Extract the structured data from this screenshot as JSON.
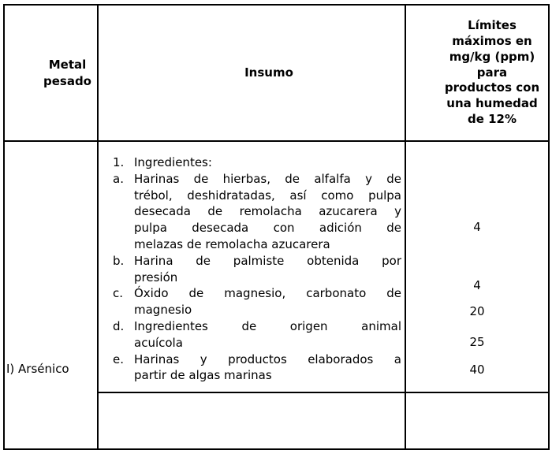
{
  "table": {
    "headers": {
      "metal": "Metal pesado",
      "insumo": "Insumo",
      "limits": "Límites\nmáximos en\nmg/kg (ppm)\npara\nproductos con\nuna humedad\nde 12%"
    },
    "row": {
      "metal": "I) Arsénico",
      "items": [
        {
          "marker": "1.",
          "lines": [
            "Ingredientes:"
          ]
        },
        {
          "marker": "a.",
          "lines": [
            "Harinas de hierbas, de alfalfa y de",
            "trébol, deshidratadas, así como pulpa",
            "desecada de remolacha azucarera y",
            "pulpa desecada con adición de",
            "melazas de remolacha azucarera"
          ]
        },
        {
          "marker": "b.",
          "lines": [
            "Harina de palmiste obtenida por",
            "presión"
          ]
        },
        {
          "marker": "c.",
          "lines": [
            "Óxido de magnesio, carbonato de",
            "magnesio"
          ]
        },
        {
          "marker": "d.",
          "lines": [
            "Ingredientes de origen animal",
            "acuícola"
          ]
        },
        {
          "marker": "e.",
          "lines": [
            "Harinas y productos elaborados a",
            "partir de algas marinas"
          ]
        }
      ],
      "limits": [
        "4",
        "4",
        "20",
        "25",
        "40"
      ]
    },
    "colors": {
      "border": "#000000",
      "text": "#000000",
      "background": "#ffffff"
    }
  }
}
